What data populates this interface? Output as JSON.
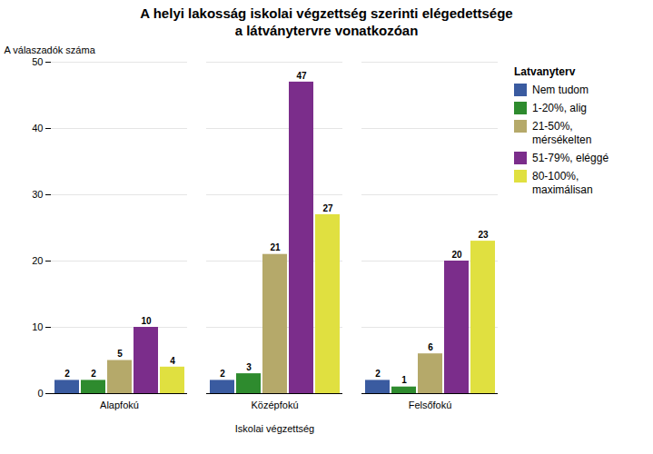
{
  "chart_data": {
    "type": "bar",
    "title": "A helyi lakosság iskolai végzettség szerinti elégedettsége\na látványtervre vonatkozóan",
    "xlabel": "Iskolai végzettség",
    "ylabel": "A válaszadók száma",
    "categories": [
      "Alapfokú",
      "Középfokú",
      "Felsőfokú"
    ],
    "series": [
      {
        "name": "Nem tudom",
        "color": "#3a5ba0",
        "values": [
          2,
          2,
          2
        ]
      },
      {
        "name": "1-20%, alig",
        "color": "#2e8b2e",
        "values": [
          2,
          3,
          1
        ]
      },
      {
        "name": "21-50%,\nmérsékelten",
        "color": "#b5a96a",
        "values": [
          5,
          21,
          6
        ]
      },
      {
        "name": "51-79%, eléggé",
        "color": "#7b2d8b",
        "values": [
          10,
          47,
          20
        ]
      },
      {
        "name": "80-100%,\nmaximálisan",
        "color": "#e0e040",
        "values": [
          4,
          27,
          23
        ]
      }
    ],
    "ylim": [
      0,
      50
    ],
    "yticks": [
      0,
      10,
      20,
      30,
      40,
      50
    ],
    "grid": true,
    "data_labels": true,
    "legend": "right",
    "legend_title": "Latvanyterv"
  }
}
